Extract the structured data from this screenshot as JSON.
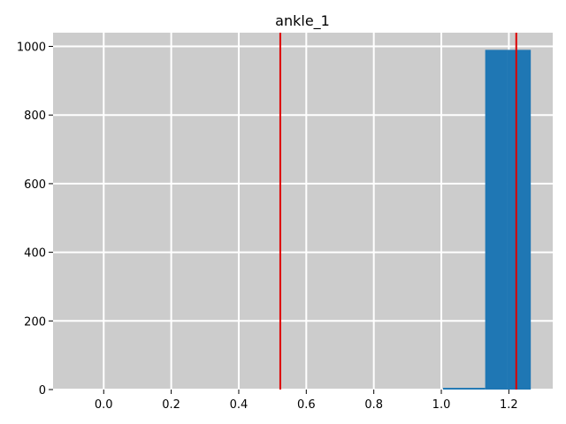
{
  "chart_data": {
    "type": "bar",
    "title": "ankle_1",
    "xlabel": "",
    "ylabel": "",
    "xlim": [
      -0.15,
      1.33
    ],
    "ylim": [
      0,
      1040
    ],
    "x_ticks": [
      "0.0",
      "0.2",
      "0.4",
      "0.6",
      "0.8",
      "1.0",
      "1.2"
    ],
    "y_ticks": [
      "0",
      "200",
      "400",
      "600",
      "800",
      "1000"
    ],
    "grid": true,
    "bins": [
      {
        "x0": 1.005,
        "x1": 1.13,
        "value": 5
      },
      {
        "x0": 1.13,
        "x1": 1.195,
        "value": 990
      },
      {
        "x0": 1.195,
        "x1": 1.265,
        "value": 990
      }
    ],
    "vlines": [
      0.523,
      1.222
    ],
    "colors": {
      "background": "#cccccc",
      "bar": "#1f77b4",
      "vline": "#dd0000",
      "grid": "#ffffff"
    }
  }
}
